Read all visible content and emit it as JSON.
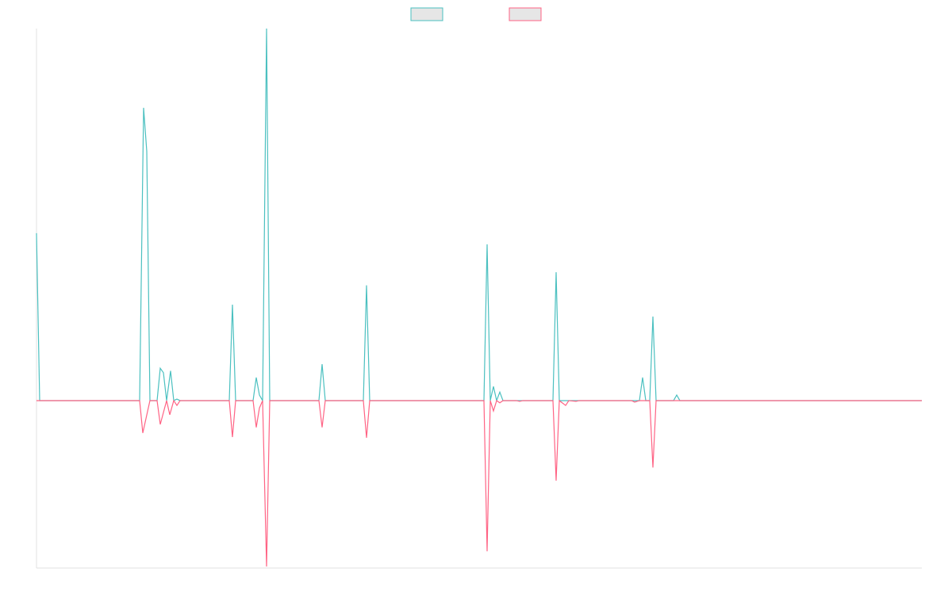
{
  "chart_data": {
    "type": "line",
    "xlim": [
      0,
      1116
    ],
    "ylim": [
      -45,
      100
    ],
    "legend": "top",
    "series": [
      {
        "color": "#4bc0c0",
        "x": [
          0,
          4,
          130,
          135,
          139,
          143,
          152,
          156,
          160,
          164,
          169,
          173,
          177,
          181,
          243,
          247,
          251,
          273,
          277,
          281,
          285,
          290,
          294,
          356,
          360,
          364,
          412,
          416,
          420,
          564,
          568,
          572,
          576,
          580,
          584,
          588,
          651,
          655,
          659,
          760,
          764,
          768,
          773,
          777,
          781,
          803,
          807,
          811,
          1116
        ],
        "values": [
          45,
          0,
          0,
          78.7,
          67,
          0,
          0,
          8.7,
          7.5,
          0,
          8,
          0,
          0.4,
          0,
          0,
          25.8,
          0,
          0,
          6.2,
          1.5,
          0,
          100,
          0,
          0,
          9.8,
          0,
          0,
          31,
          0,
          0,
          42,
          0,
          3.8,
          0,
          2.3,
          0,
          0,
          34.5,
          0,
          0,
          6.2,
          0,
          0,
          22.6,
          0,
          0,
          1.5,
          0,
          0
        ]
      },
      {
        "color": "#ff6384",
        "x": [
          0,
          130,
          134,
          143,
          152,
          156,
          164,
          168,
          173,
          177,
          181,
          243,
          247,
          251,
          273,
          277,
          281,
          285,
          290,
          294,
          356,
          360,
          364,
          412,
          416,
          420,
          564,
          568,
          572,
          576,
          580,
          584,
          588,
          605,
          609,
          613,
          651,
          655,
          659,
          667,
          671,
          680,
          684,
          750,
          754,
          760,
          773,
          777,
          781,
          1116
        ],
        "values": [
          0,
          0,
          -8.7,
          0,
          0,
          -6.4,
          0,
          -3.8,
          0,
          -1.3,
          0,
          0,
          -9.8,
          0,
          0,
          -7.2,
          -2,
          0,
          -44.6,
          0,
          0,
          -7.2,
          0,
          0,
          -10,
          0,
          0,
          -40.5,
          0,
          -2.8,
          0,
          -0.6,
          0,
          0,
          -0.2,
          0,
          0,
          -21.5,
          0,
          -1.3,
          0,
          -0.2,
          0,
          0,
          -0.4,
          0,
          0,
          -18,
          0,
          0
        ]
      }
    ]
  }
}
